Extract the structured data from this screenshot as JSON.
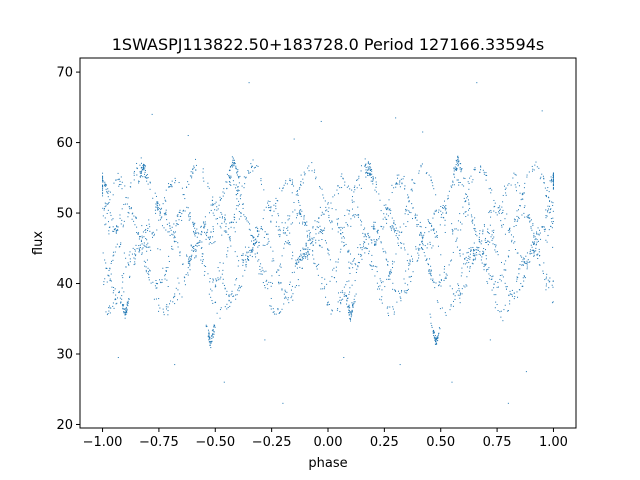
{
  "chart_data": {
    "type": "scatter",
    "title": "1SWASPJ113822.50+183728.0 Period 127166.33594s",
    "xlabel": "phase",
    "ylabel": "flux",
    "xlim": [
      -1.1,
      1.1
    ],
    "ylim": [
      19.5,
      72
    ],
    "xticks": [
      -1.0,
      -0.75,
      -0.5,
      -0.25,
      0.0,
      0.25,
      0.5,
      0.75,
      1.0
    ],
    "xtick_labels": [
      "−1.00",
      "−0.75",
      "−0.50",
      "−0.25",
      "0.00",
      "0.25",
      "0.50",
      "0.75",
      "1.00"
    ],
    "yticks": [
      20,
      30,
      40,
      50,
      60,
      70
    ],
    "ytick_labels": [
      "20",
      "30",
      "40",
      "50",
      "60",
      "70"
    ],
    "grid": false,
    "point_color": "#1f77b4",
    "series": [
      {
        "band_params": [
          {
            "phase0": 0.82,
            "baseline": 50,
            "amplitude": 4.5,
            "freq": 4
          },
          {
            "phase0": 0.42,
            "baseline": 52,
            "amplitude": 4.5,
            "freq": 4
          },
          {
            "phase0": 0.0,
            "baseline": 47,
            "amplitude": 4.0,
            "freq": 4
          },
          {
            "phase0": 0.62,
            "baseline": 45,
            "amplitude": 5.0,
            "freq": 4
          },
          {
            "phase0": 0.2,
            "baseline": 43,
            "amplitude": 5.0,
            "freq": 4
          },
          {
            "phase0": 0.9,
            "baseline": 40.5,
            "amplitude": 4.5,
            "freq": 4
          }
        ],
        "dips": [
          {
            "x": -0.52,
            "y": 31.5
          },
          {
            "x": 0.48,
            "y": 31.5
          },
          {
            "x": -0.9,
            "y": 35.5
          },
          {
            "x": 0.1,
            "y": 35.5
          }
        ],
        "peaks": [
          {
            "x": -0.82,
            "y": 56.5
          },
          {
            "x": 0.18,
            "y": 56.5
          },
          {
            "x": -0.42,
            "y": 57.5
          },
          {
            "x": 0.58,
            "y": 57.5
          },
          {
            "x": 1.0,
            "y": 55.5
          },
          {
            "x": -1.0,
            "y": 55.0
          }
        ],
        "outliers": [
          {
            "x": -0.78,
            "y": 64.0
          },
          {
            "x": -0.35,
            "y": 68.5
          },
          {
            "x": -0.03,
            "y": 63.0
          },
          {
            "x": 0.3,
            "y": 63.5
          },
          {
            "x": 0.66,
            "y": 68.5
          },
          {
            "x": 0.95,
            "y": 64.5
          },
          {
            "x": -0.62,
            "y": 61.0
          },
          {
            "x": 0.42,
            "y": 61.5
          },
          {
            "x": -0.15,
            "y": 60.5
          },
          {
            "x": -0.46,
            "y": 26.0
          },
          {
            "x": 0.55,
            "y": 26.0
          },
          {
            "x": -0.2,
            "y": 23.0
          },
          {
            "x": 0.8,
            "y": 23.0
          },
          {
            "x": -0.93,
            "y": 29.5
          },
          {
            "x": 0.07,
            "y": 29.5
          },
          {
            "x": -0.68,
            "y": 28.5
          },
          {
            "x": 0.32,
            "y": 28.5
          },
          {
            "x": 0.88,
            "y": 27.5
          },
          {
            "x": -0.28,
            "y": 32.0
          },
          {
            "x": 0.72,
            "y": 32.0
          }
        ]
      }
    ]
  }
}
